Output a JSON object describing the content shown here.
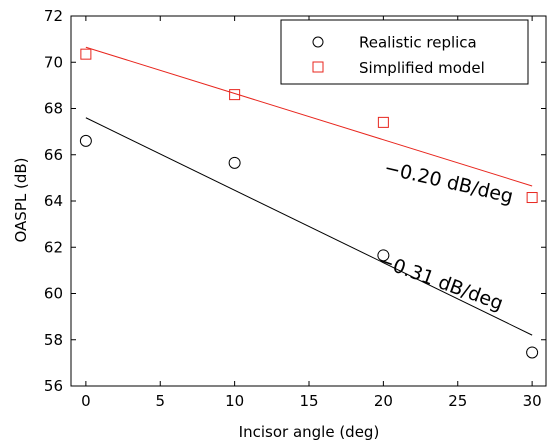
{
  "chart_data": {
    "type": "scatter",
    "xlabel": "Incisor angle (deg)",
    "ylabel": "OASPL (dB)",
    "xlim": [
      -1,
      31
    ],
    "ylim": [
      56,
      72
    ],
    "xticks": [
      0,
      5,
      10,
      15,
      20,
      25,
      30
    ],
    "yticks": [
      56,
      58,
      60,
      62,
      64,
      66,
      68,
      70,
      72
    ],
    "grid": false,
    "legend_position": "top-right",
    "series": [
      {
        "name": "Realistic replica",
        "marker": "circle",
        "color": "#000000",
        "x": [
          0,
          10,
          20,
          30
        ],
        "y": [
          66.6,
          65.65,
          61.65,
          57.45
        ],
        "fit": {
          "x": [
            0,
            30
          ],
          "y": [
            67.6,
            58.2
          ]
        }
      },
      {
        "name": "Simplified model",
        "marker": "square",
        "color": "#e8261e",
        "x": [
          0,
          10,
          20,
          30
        ],
        "y": [
          70.35,
          68.6,
          67.4,
          64.15
        ],
        "fit": {
          "x": [
            0,
            30
          ],
          "y": [
            70.65,
            64.65
          ]
        }
      }
    ],
    "annotations": [
      {
        "text": "−0.20 dB/deg",
        "x": 24.3,
        "y": 64.55,
        "rotation": 13
      },
      {
        "text": "−0.31 dB/deg",
        "x": 23.7,
        "y": 60.25,
        "rotation": 20
      }
    ]
  }
}
